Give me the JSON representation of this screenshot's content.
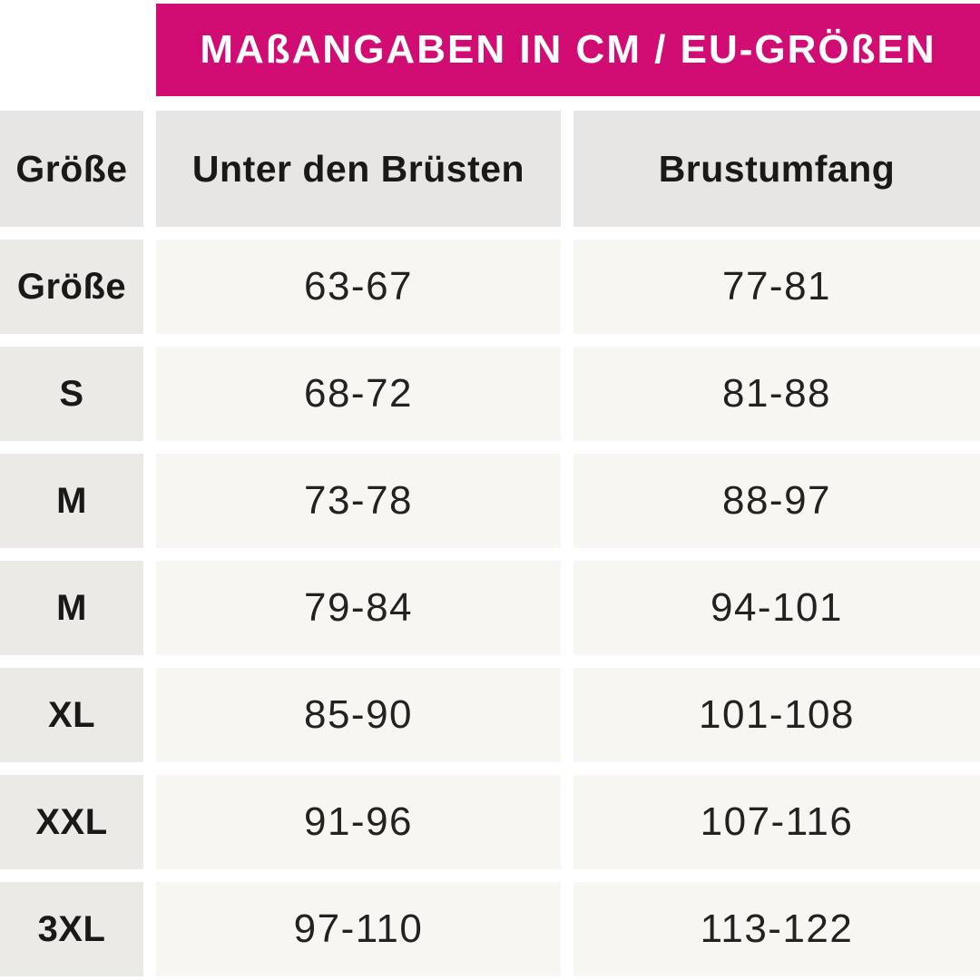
{
  "banner": {
    "title": "MAßANGABEN IN CM / EU-GRÖßEN"
  },
  "colors": {
    "accent": "#d10c72",
    "banner_text": "#ffffff",
    "header_cell_bg": "#e8e6e4",
    "label_cell_bg": "#eceae7",
    "value_cell_bg": "#f7f6f3",
    "text": "#1b1918",
    "page_bg": "#ffffff"
  },
  "table": {
    "columns": [
      "Größe",
      "Unter den Brüsten",
      "Brustumfang"
    ],
    "rows": [
      {
        "size": "Größe",
        "under_bust": "63-67",
        "bust": "77-81"
      },
      {
        "size": "S",
        "under_bust": "68-72",
        "bust": "81-88"
      },
      {
        "size": "M",
        "under_bust": "73-78",
        "bust": "88-97"
      },
      {
        "size": "M",
        "under_bust": "79-84",
        "bust": "94-101"
      },
      {
        "size": "XL",
        "under_bust": "85-90",
        "bust": "101-108"
      },
      {
        "size": "XXL",
        "under_bust": "91-96",
        "bust": "107-116"
      },
      {
        "size": "3XL",
        "under_bust": "97-110",
        "bust": "113-122"
      }
    ]
  },
  "chart_data": {
    "type": "table",
    "title": "MAßANGABEN IN CM / EU-GRÖßEN",
    "columns": [
      "Größe",
      "Unter den Brüsten",
      "Brustumfang"
    ],
    "rows": [
      [
        "Größe",
        "63-67",
        "77-81"
      ],
      [
        "S",
        "68-72",
        "81-88"
      ],
      [
        "M",
        "73-78",
        "88-97"
      ],
      [
        "M",
        "79-84",
        "94-101"
      ],
      [
        "XL",
        "85-90",
        "101-108"
      ],
      [
        "XXL",
        "91-96",
        "107-116"
      ],
      [
        "3XL",
        "97-110",
        "113-122"
      ]
    ],
    "units": "cm",
    "notes": "EU sizes; header band color #d10c72"
  }
}
